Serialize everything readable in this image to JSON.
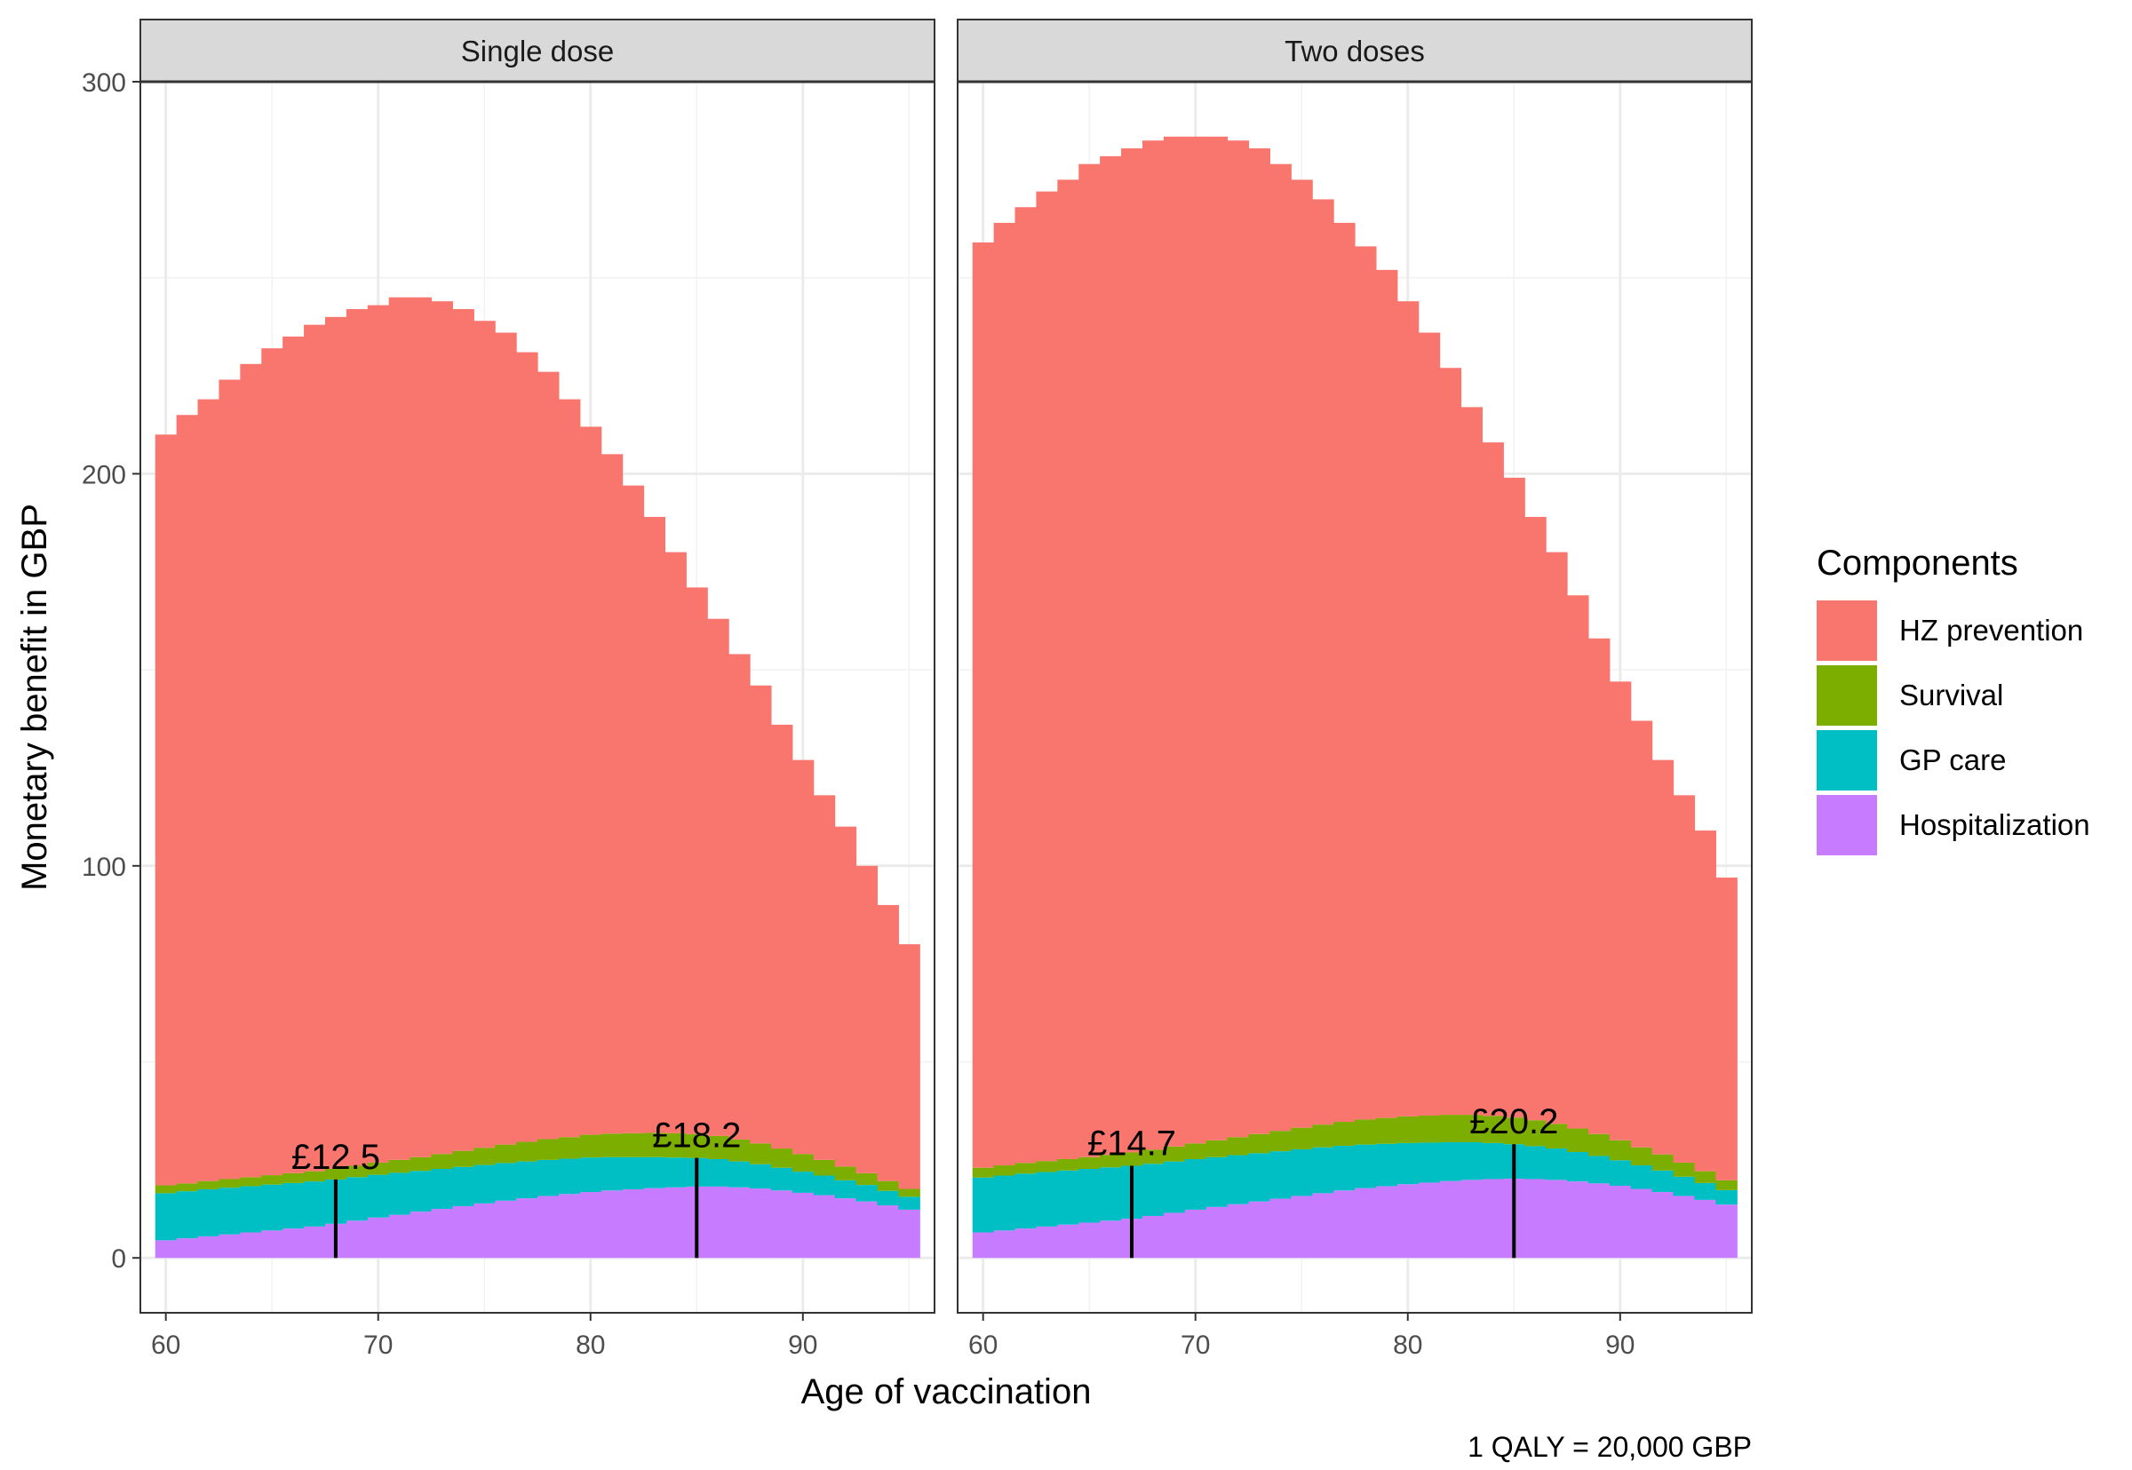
{
  "chart_data": {
    "type": "bar",
    "subtype": "stacked-bar facets",
    "ylabel": "Monetary benefit in GBP",
    "xlabel": "Age of vaccination",
    "caption": "1 QALY = 20,000 GBP",
    "ylim": [
      -14,
      300
    ],
    "xlim": [
      58.8,
      96.2
    ],
    "y_ticks": [
      0,
      100,
      200,
      300
    ],
    "x_ticks": [
      60,
      70,
      80,
      90
    ],
    "grid": "on",
    "theme": "bw",
    "legend_position": "right",
    "legend": {
      "title": "Components",
      "items": [
        {
          "label": "HZ prevention",
          "color": "#F8766D"
        },
        {
          "label": "Survival",
          "color": "#7CAE00"
        },
        {
          "label": "GP care",
          "color": "#00BFC4"
        },
        {
          "label": "Hospitalization",
          "color": "#C77CFF"
        }
      ]
    },
    "facets": [
      {
        "label": "Single dose",
        "x": [
          60,
          61,
          62,
          63,
          64,
          65,
          66,
          67,
          68,
          69,
          70,
          71,
          72,
          73,
          74,
          75,
          76,
          77,
          78,
          79,
          80,
          81,
          82,
          83,
          84,
          85,
          86,
          87,
          88,
          89,
          90,
          91,
          92,
          93,
          94,
          95
        ],
        "totals": [
          210,
          215,
          219,
          224,
          228,
          232,
          235,
          238,
          240,
          242,
          243,
          245,
          245,
          244,
          242,
          239,
          236,
          231,
          226,
          219,
          212,
          205,
          197,
          189,
          180,
          171,
          163,
          154,
          146,
          136,
          127,
          118,
          110,
          100,
          90,
          80
        ],
        "series": [
          {
            "name": "Hospitalization",
            "values": [
              4.5,
              5.0,
              5.5,
              6.0,
              6.5,
              7.0,
              7.5,
              8.0,
              8.7,
              9.5,
              10.3,
              11.0,
              11.8,
              12.5,
              13.2,
              13.9,
              14.6,
              15.2,
              15.8,
              16.3,
              16.8,
              17.2,
              17.5,
              17.8,
              18.0,
              18.2,
              18.2,
              18.0,
              17.7,
              17.2,
              16.6,
              16.0,
              15.2,
              14.4,
              13.4,
              12.3
            ]
          },
          {
            "name": "GP care",
            "values": [
              12.0,
              12.0,
              12.0,
              11.9,
              11.8,
              11.7,
              11.6,
              11.5,
              11.3,
              11.1,
              10.9,
              10.7,
              10.4,
              10.2,
              10.0,
              9.8,
              9.6,
              9.4,
              9.2,
              9.0,
              8.8,
              8.5,
              8.2,
              7.9,
              7.6,
              7.3,
              7.0,
              6.6,
              6.2,
              5.8,
              5.4,
              5.0,
              4.6,
              4.2,
              3.7,
              3.3
            ]
          },
          {
            "name": "Survival",
            "values": [
              2.0,
              2.0,
              2.1,
              2.2,
              2.3,
              2.4,
              2.5,
              2.6,
              2.7,
              2.9,
              3.1,
              3.3,
              3.5,
              3.8,
              4.1,
              4.4,
              4.7,
              5.0,
              5.3,
              5.5,
              5.8,
              6.0,
              6.1,
              6.2,
              6.2,
              6.1,
              5.9,
              5.6,
              5.3,
              4.9,
              4.5,
              4.0,
              3.5,
              3.0,
              2.5,
              2.0
            ]
          }
        ],
        "annotations": [
          {
            "x": 68,
            "value": 12.5,
            "label": "£12.5"
          },
          {
            "x": 85,
            "value": 18.2,
            "label": "£18.2"
          }
        ]
      },
      {
        "label": "Two doses",
        "x": [
          60,
          61,
          62,
          63,
          64,
          65,
          66,
          67,
          68,
          69,
          70,
          71,
          72,
          73,
          74,
          75,
          76,
          77,
          78,
          79,
          80,
          81,
          82,
          83,
          84,
          85,
          86,
          87,
          88,
          89,
          90,
          91,
          92,
          93,
          94,
          95
        ],
        "totals": [
          259,
          264,
          268,
          272,
          275,
          279,
          281,
          283,
          285,
          286,
          286,
          286,
          285,
          283,
          279,
          275,
          270,
          264,
          258,
          252,
          244,
          236,
          227,
          217,
          208,
          199,
          189,
          180,
          169,
          158,
          147,
          137,
          127,
          118,
          109,
          97
        ],
        "series": [
          {
            "name": "Hospitalization",
            "values": [
              6.5,
              7.0,
              7.5,
              8.0,
              8.5,
              9.0,
              9.5,
              10.0,
              10.7,
              11.5,
              12.3,
              13.0,
              13.7,
              14.4,
              15.1,
              15.8,
              16.5,
              17.2,
              17.8,
              18.3,
              18.8,
              19.2,
              19.6,
              19.9,
              20.1,
              20.2,
              20.1,
              19.9,
              19.5,
              19.0,
              18.4,
              17.6,
              16.8,
              15.8,
              14.8,
              13.6
            ]
          },
          {
            "name": "GP care",
            "values": [
              14.0,
              14.0,
              14.0,
              13.9,
              13.8,
              13.7,
              13.6,
              13.5,
              13.3,
              13.1,
              12.9,
              12.7,
              12.5,
              12.3,
              12.1,
              11.9,
              11.7,
              11.4,
              11.1,
              10.8,
              10.5,
              10.2,
              9.9,
              9.6,
              9.2,
              8.8,
              8.4,
              8.0,
              7.5,
              7.0,
              6.5,
              6.0,
              5.5,
              4.9,
              4.3,
              3.7
            ]
          },
          {
            "name": "Survival",
            "values": [
              2.5,
              2.6,
              2.7,
              2.8,
              2.9,
              3.0,
              3.2,
              3.4,
              3.6,
              3.8,
              4.0,
              4.3,
              4.6,
              4.9,
              5.2,
              5.5,
              5.8,
              6.1,
              6.4,
              6.6,
              6.8,
              6.9,
              7.0,
              7.0,
              6.9,
              6.8,
              6.6,
              6.3,
              6.0,
              5.6,
              5.1,
              4.6,
              4.1,
              3.6,
              3.0,
              2.5
            ]
          }
        ],
        "annotations": [
          {
            "x": 67,
            "value": 14.7,
            "label": "£14.7"
          },
          {
            "x": 85,
            "value": 20.2,
            "label": "£20.2"
          }
        ]
      }
    ]
  }
}
